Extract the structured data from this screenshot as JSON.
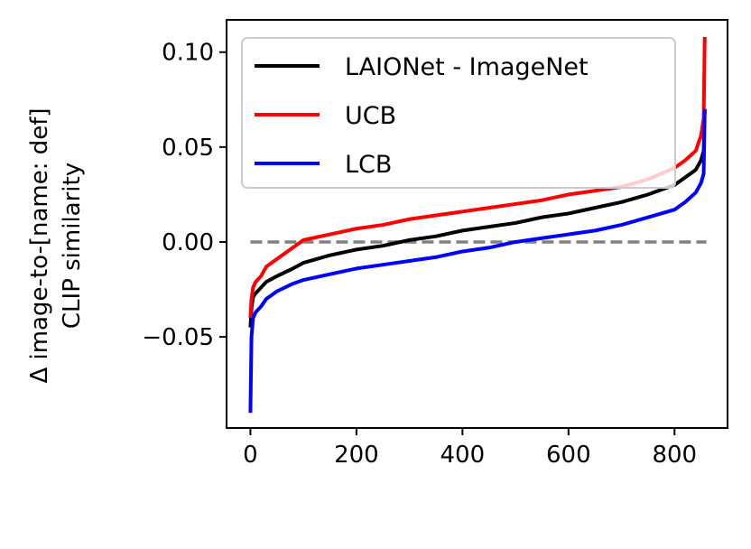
{
  "chart_data": {
    "type": "line",
    "title": "",
    "xlabel": "",
    "ylabel_lines": [
      "Δ image-to-[name: def]",
      "CLIP similarity"
    ],
    "xlim": [
      -45,
      900
    ],
    "ylim": [
      -0.098,
      0.117
    ],
    "xticks": [
      0,
      200,
      400,
      600,
      800
    ],
    "xtick_labels": [
      "0",
      "200",
      "400",
      "600",
      "800"
    ],
    "yticks": [
      -0.05,
      0.0,
      0.05,
      0.1
    ],
    "ytick_labels": [
      "−0.05",
      "0.00",
      "0.05",
      "0.10"
    ],
    "grid": false,
    "legend_position": "top-right",
    "reference_line": {
      "y": 0.0,
      "style": "dashed",
      "color": "#808080"
    },
    "series": [
      {
        "name": "LAIONet - ImageNet",
        "color": "#000000",
        "x": [
          0,
          2,
          5,
          10,
          20,
          30,
          50,
          80,
          100,
          150,
          200,
          250,
          300,
          350,
          400,
          450,
          500,
          550,
          600,
          650,
          700,
          750,
          800,
          820,
          840,
          850,
          855,
          857
        ],
        "y": [
          -0.045,
          -0.035,
          -0.029,
          -0.027,
          -0.024,
          -0.021,
          -0.018,
          -0.014,
          -0.011,
          -0.007,
          -0.004,
          -0.002,
          0.001,
          0.003,
          0.006,
          0.008,
          0.01,
          0.013,
          0.015,
          0.018,
          0.021,
          0.025,
          0.03,
          0.034,
          0.038,
          0.043,
          0.048,
          0.07
        ]
      },
      {
        "name": "UCB",
        "color": "#ff0000",
        "x": [
          0,
          2,
          5,
          10,
          20,
          30,
          50,
          80,
          100,
          150,
          200,
          250,
          300,
          350,
          400,
          450,
          500,
          550,
          600,
          650,
          700,
          750,
          800,
          820,
          840,
          850,
          855,
          857
        ],
        "y": [
          -0.04,
          -0.03,
          -0.024,
          -0.021,
          -0.018,
          -0.013,
          -0.009,
          -0.003,
          0.001,
          0.004,
          0.007,
          0.009,
          0.012,
          0.014,
          0.016,
          0.018,
          0.02,
          0.022,
          0.025,
          0.027,
          0.029,
          0.033,
          0.039,
          0.043,
          0.048,
          0.056,
          0.065,
          0.108
        ]
      },
      {
        "name": "LCB",
        "color": "#0000ff",
        "x": [
          0,
          2,
          5,
          10,
          20,
          30,
          50,
          80,
          100,
          150,
          200,
          250,
          300,
          350,
          400,
          450,
          500,
          550,
          600,
          650,
          700,
          750,
          800,
          820,
          840,
          850,
          855,
          857
        ],
        "y": [
          -0.09,
          -0.05,
          -0.04,
          -0.037,
          -0.034,
          -0.03,
          -0.026,
          -0.022,
          -0.02,
          -0.017,
          -0.014,
          -0.012,
          -0.01,
          -0.008,
          -0.005,
          -0.003,
          0.0,
          0.002,
          0.004,
          0.006,
          0.009,
          0.013,
          0.017,
          0.021,
          0.026,
          0.031,
          0.036,
          0.07
        ]
      }
    ]
  }
}
